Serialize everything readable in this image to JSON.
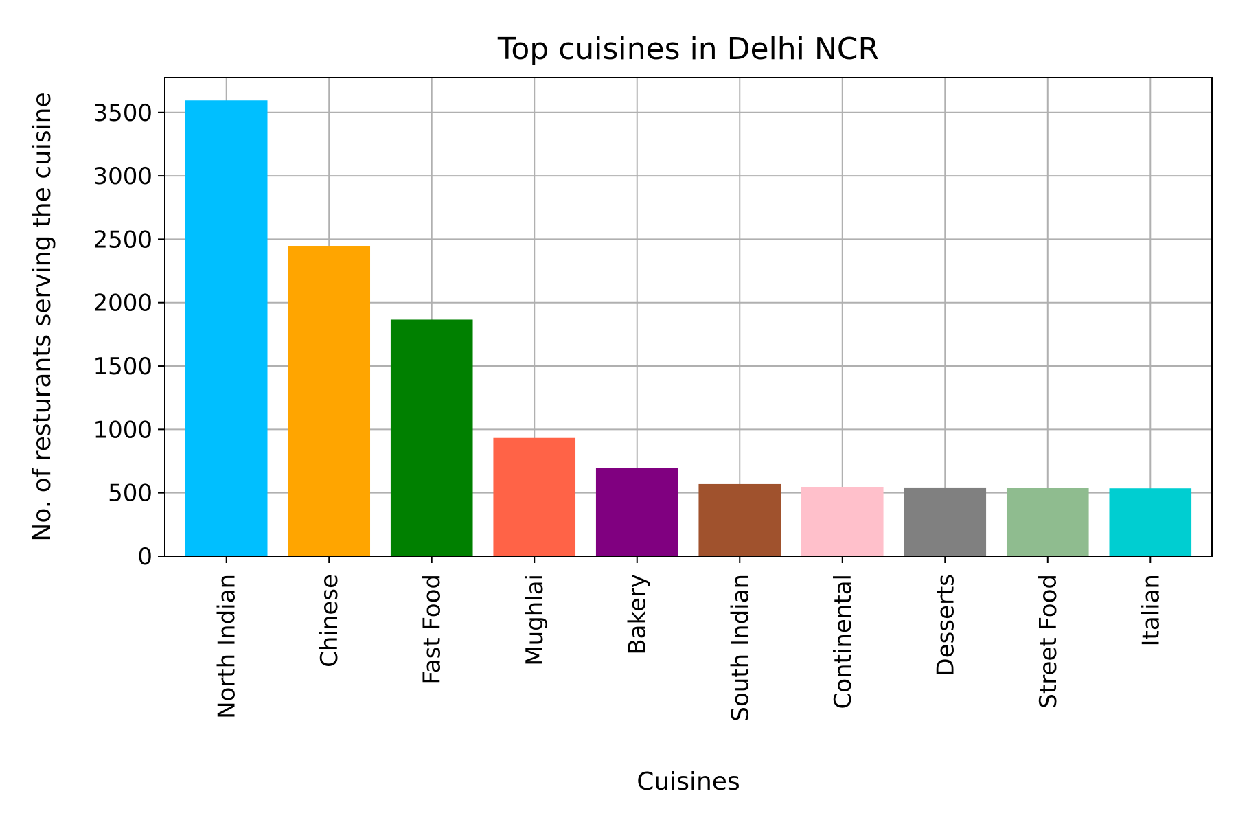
{
  "chart_data": {
    "type": "bar",
    "title": "Top cuisines in Delhi NCR",
    "xlabel": "Cuisines",
    "ylabel": "No. of resturants serving the cuisine",
    "categories": [
      "North Indian",
      "Chinese",
      "Fast Food",
      "Mughlai",
      "Bakery",
      "South Indian",
      "Continental",
      "Desserts",
      "Street Food",
      "Italian"
    ],
    "values": [
      3595,
      2448,
      1866,
      933,
      697,
      569,
      547,
      542,
      538,
      535
    ],
    "colors": [
      "#00bfff",
      "#ffa500",
      "#008000",
      "#ff6347",
      "#800080",
      "#a0522d",
      "#ffc0cb",
      "#808080",
      "#8fbc8f",
      "#00ced1"
    ],
    "ylim": [
      0,
      3775
    ],
    "yticks": [
      0,
      500,
      1000,
      1500,
      2000,
      2500,
      3000,
      3500
    ],
    "grid": true
  }
}
